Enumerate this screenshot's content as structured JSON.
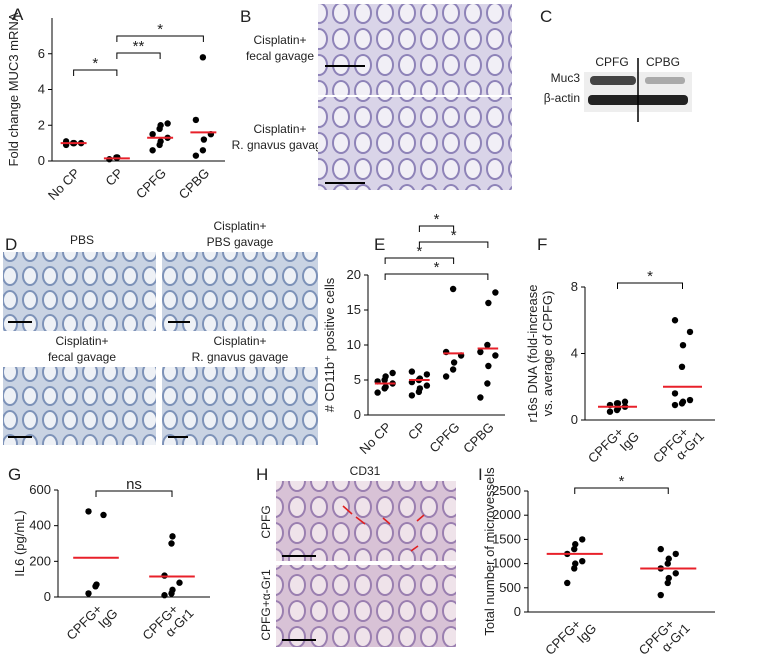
{
  "chart_data": [
    {
      "type": "strip",
      "panel": "A",
      "ylabel": [
        "Fold change MUC3 mRNA"
      ],
      "categories": [
        [
          "No CP"
        ],
        [
          "CP"
        ],
        [
          "CPFG"
        ],
        [
          "CPBG"
        ]
      ],
      "points": [
        [
          0.9,
          1.0,
          1.0,
          1.0,
          1.1
        ],
        [
          0.1,
          0.2,
          0.2
        ],
        [
          0.6,
          0.9,
          1.1,
          1.3,
          1.5,
          1.8,
          2.0,
          2.1
        ],
        [
          0.3,
          0.6,
          1.2,
          1.5,
          2.3,
          5.8
        ]
      ],
      "means": [
        1.0,
        0.15,
        1.3,
        1.6
      ],
      "ylim": [
        0,
        8
      ],
      "yticks": [
        0,
        2,
        4,
        6
      ],
      "point_color": "#000000",
      "mean_color": "#e8202a",
      "brackets": [
        {
          "pair": [
            1,
            3
          ],
          "label": "*"
        },
        {
          "pair": [
            1,
            2
          ],
          "label": "**"
        },
        {
          "pair": [
            0,
            1
          ],
          "label": "*"
        }
      ]
    },
    {
      "type": "strip",
      "panel": "E",
      "ylabel": [
        "# CD11b⁺ positive cells"
      ],
      "categories": [
        [
          "No CP"
        ],
        [
          "CP"
        ],
        [
          "CPFG"
        ],
        [
          "CPBG"
        ]
      ],
      "points": [
        [
          3.2,
          3.8,
          4.0,
          4.5,
          4.8,
          5.0,
          5.5,
          6.0
        ],
        [
          2.8,
          3.3,
          3.8,
          4.2,
          4.7,
          5.0,
          5.2,
          5.8,
          6.2
        ],
        [
          5.5,
          6.5,
          7.5,
          8.5,
          9.0,
          18.0
        ],
        [
          2.5,
          4.5,
          7.0,
          8.5,
          9.0,
          10.0,
          16.0,
          17.5
        ]
      ],
      "means": [
        4.5,
        5.0,
        8.8,
        9.5
      ],
      "ylim": [
        0,
        20
      ],
      "yticks": [
        0,
        5,
        10,
        15,
        20
      ],
      "point_color": "#000000",
      "mean_color": "#e8202a",
      "brackets": [
        {
          "pair": [
            1,
            2
          ],
          "label": "*"
        },
        {
          "pair": [
            1,
            3
          ],
          "label": "*"
        },
        {
          "pair": [
            0,
            2
          ],
          "label": "*"
        },
        {
          "pair": [
            0,
            3
          ],
          "label": "*"
        }
      ]
    },
    {
      "type": "strip",
      "panel": "F",
      "ylabel": [
        "r16s DNA (fold-increase",
        "vs. average of CPFG)"
      ],
      "categories": [
        [
          "CPFG+",
          "IgG"
        ],
        [
          "CPFG+",
          "α-Gr1"
        ]
      ],
      "points": [
        [
          0.5,
          0.6,
          0.7,
          0.8,
          0.9,
          1.0,
          1.0,
          1.1
        ],
        [
          0.9,
          1.0,
          1.1,
          1.2,
          1.6,
          3.2,
          4.5,
          5.3,
          6.0
        ]
      ],
      "means": [
        0.8,
        2.0
      ],
      "ylim": [
        0,
        8
      ],
      "yticks": [
        0,
        4,
        8
      ],
      "point_color": "#000000",
      "mean_color": "#e8202a",
      "brackets": [
        {
          "pair": [
            0,
            1
          ],
          "label": "*"
        }
      ]
    },
    {
      "type": "strip",
      "panel": "G",
      "ylabel": [
        "IL6 (pg/mL)"
      ],
      "categories": [
        [
          "CPFG+",
          "IgG"
        ],
        [
          "CPFG+",
          "α-Gr1"
        ]
      ],
      "points": [
        [
          20,
          60,
          70,
          460,
          480
        ],
        [
          10,
          20,
          40,
          80,
          120,
          300,
          340
        ]
      ],
      "means": [
        220,
        115
      ],
      "ylim": [
        0,
        600
      ],
      "yticks": [
        0,
        200,
        400,
        600
      ],
      "point_color": "#000000",
      "mean_color": "#e8202a",
      "brackets": [
        {
          "pair": [
            0,
            1
          ],
          "label": "ns"
        }
      ]
    },
    {
      "type": "strip",
      "panel": "I",
      "ylabel": [
        "Total number of microvessels"
      ],
      "categories": [
        [
          "CPFG+",
          "IgG"
        ],
        [
          "CPFG+",
          "α-Gr1"
        ]
      ],
      "points": [
        [
          600,
          900,
          1000,
          1050,
          1200,
          1300,
          1400,
          1500
        ],
        [
          350,
          600,
          700,
          800,
          900,
          1000,
          1100,
          1200,
          1300
        ]
      ],
      "means": [
        1200,
        900
      ],
      "ylim": [
        0,
        2500
      ],
      "yticks": [
        0,
        500,
        1000,
        1500,
        2000,
        2500
      ],
      "point_color": "#000000",
      "mean_color": "#e8202a",
      "brackets": [
        {
          "pair": [
            0,
            1
          ],
          "label": "*"
        }
      ]
    }
  ],
  "image_panels": [
    {
      "panel": "B",
      "labels": [
        [
          "Cisplatin+",
          "fecal gavage"
        ],
        [
          "Cisplatin+",
          "R. gnavus gavage"
        ]
      ]
    },
    {
      "panel": "C",
      "lanes": [
        "CPFG",
        "CPBG"
      ],
      "rows": [
        "Muc3",
        "β-actin"
      ]
    },
    {
      "panel": "D",
      "labels": [
        [
          "PBS"
        ],
        [
          "Cisplatin+",
          "PBS gavage"
        ],
        [
          "Cisplatin+",
          "fecal gavage"
        ],
        [
          "Cisplatin+",
          "R. gnavus gavage"
        ]
      ]
    },
    {
      "panel": "H",
      "title": "CD31",
      "labels": [
        "CPFG",
        "CPFG+α-Gr1"
      ]
    }
  ]
}
